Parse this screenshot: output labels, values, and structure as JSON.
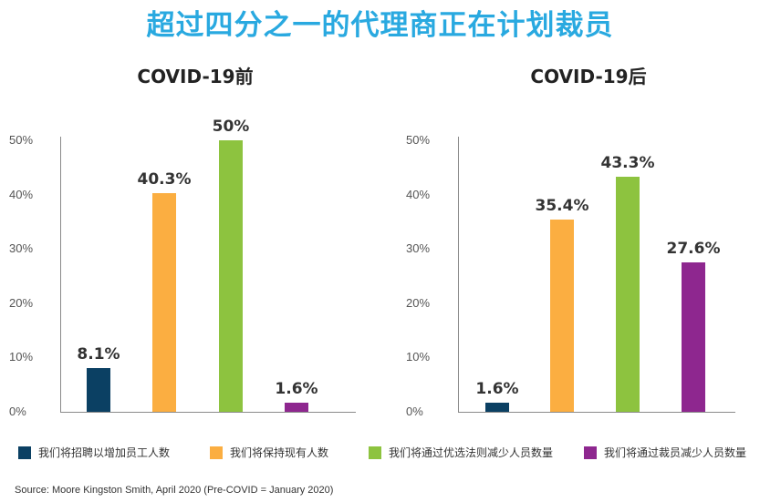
{
  "title": "超过四分之一的代理商正在计划裁员",
  "legend": [
    {
      "label": "我们将招聘以增加员工人数",
      "color": "#0b4063"
    },
    {
      "label": "我们将保持现有人数",
      "color": "#fbae41"
    },
    {
      "label": "我们将通过优选法则减少人员数量",
      "color": "#8dc33f"
    },
    {
      "label": "我们将通过裁员减少人员数量",
      "color": "#8e278f"
    }
  ],
  "source": "Source: Moore Kingston Smith, April 2020 (Pre-COVID = January 2020)",
  "chart_data": [
    {
      "type": "bar",
      "title": "COVID-19前",
      "categories": [
        "我们将招聘以增加员工人数",
        "我们将保持现有人数",
        "我们将通过优选法则减少人员数量",
        "我们将通过裁员减少人员数量"
      ],
      "values": [
        8.1,
        40.3,
        50,
        1.6
      ],
      "value_labels": [
        "8.1%",
        "40.3%",
        "50%",
        "1.6%"
      ],
      "colors": [
        "#0b4063",
        "#fbae41",
        "#8dc33f",
        "#8e278f"
      ],
      "ylim": [
        0,
        50
      ],
      "yticks": [
        "0%",
        "10%",
        "20%",
        "30%",
        "40%",
        "50%"
      ],
      "grid": false
    },
    {
      "type": "bar",
      "title": "COVID-19后",
      "categories": [
        "我们将招聘以增加员工人数",
        "我们将保持现有人数",
        "我们将通过优选法则减少人员数量",
        "我们将通过裁员减少人员数量"
      ],
      "values": [
        1.6,
        35.4,
        43.3,
        27.6
      ],
      "value_labels": [
        "1.6%",
        "35.4%",
        "43.3%",
        "27.6%"
      ],
      "colors": [
        "#0b4063",
        "#fbae41",
        "#8dc33f",
        "#8e278f"
      ],
      "ylim": [
        0,
        50
      ],
      "yticks": [
        "0%",
        "10%",
        "20%",
        "30%",
        "40%",
        "50%"
      ],
      "grid": false
    }
  ]
}
